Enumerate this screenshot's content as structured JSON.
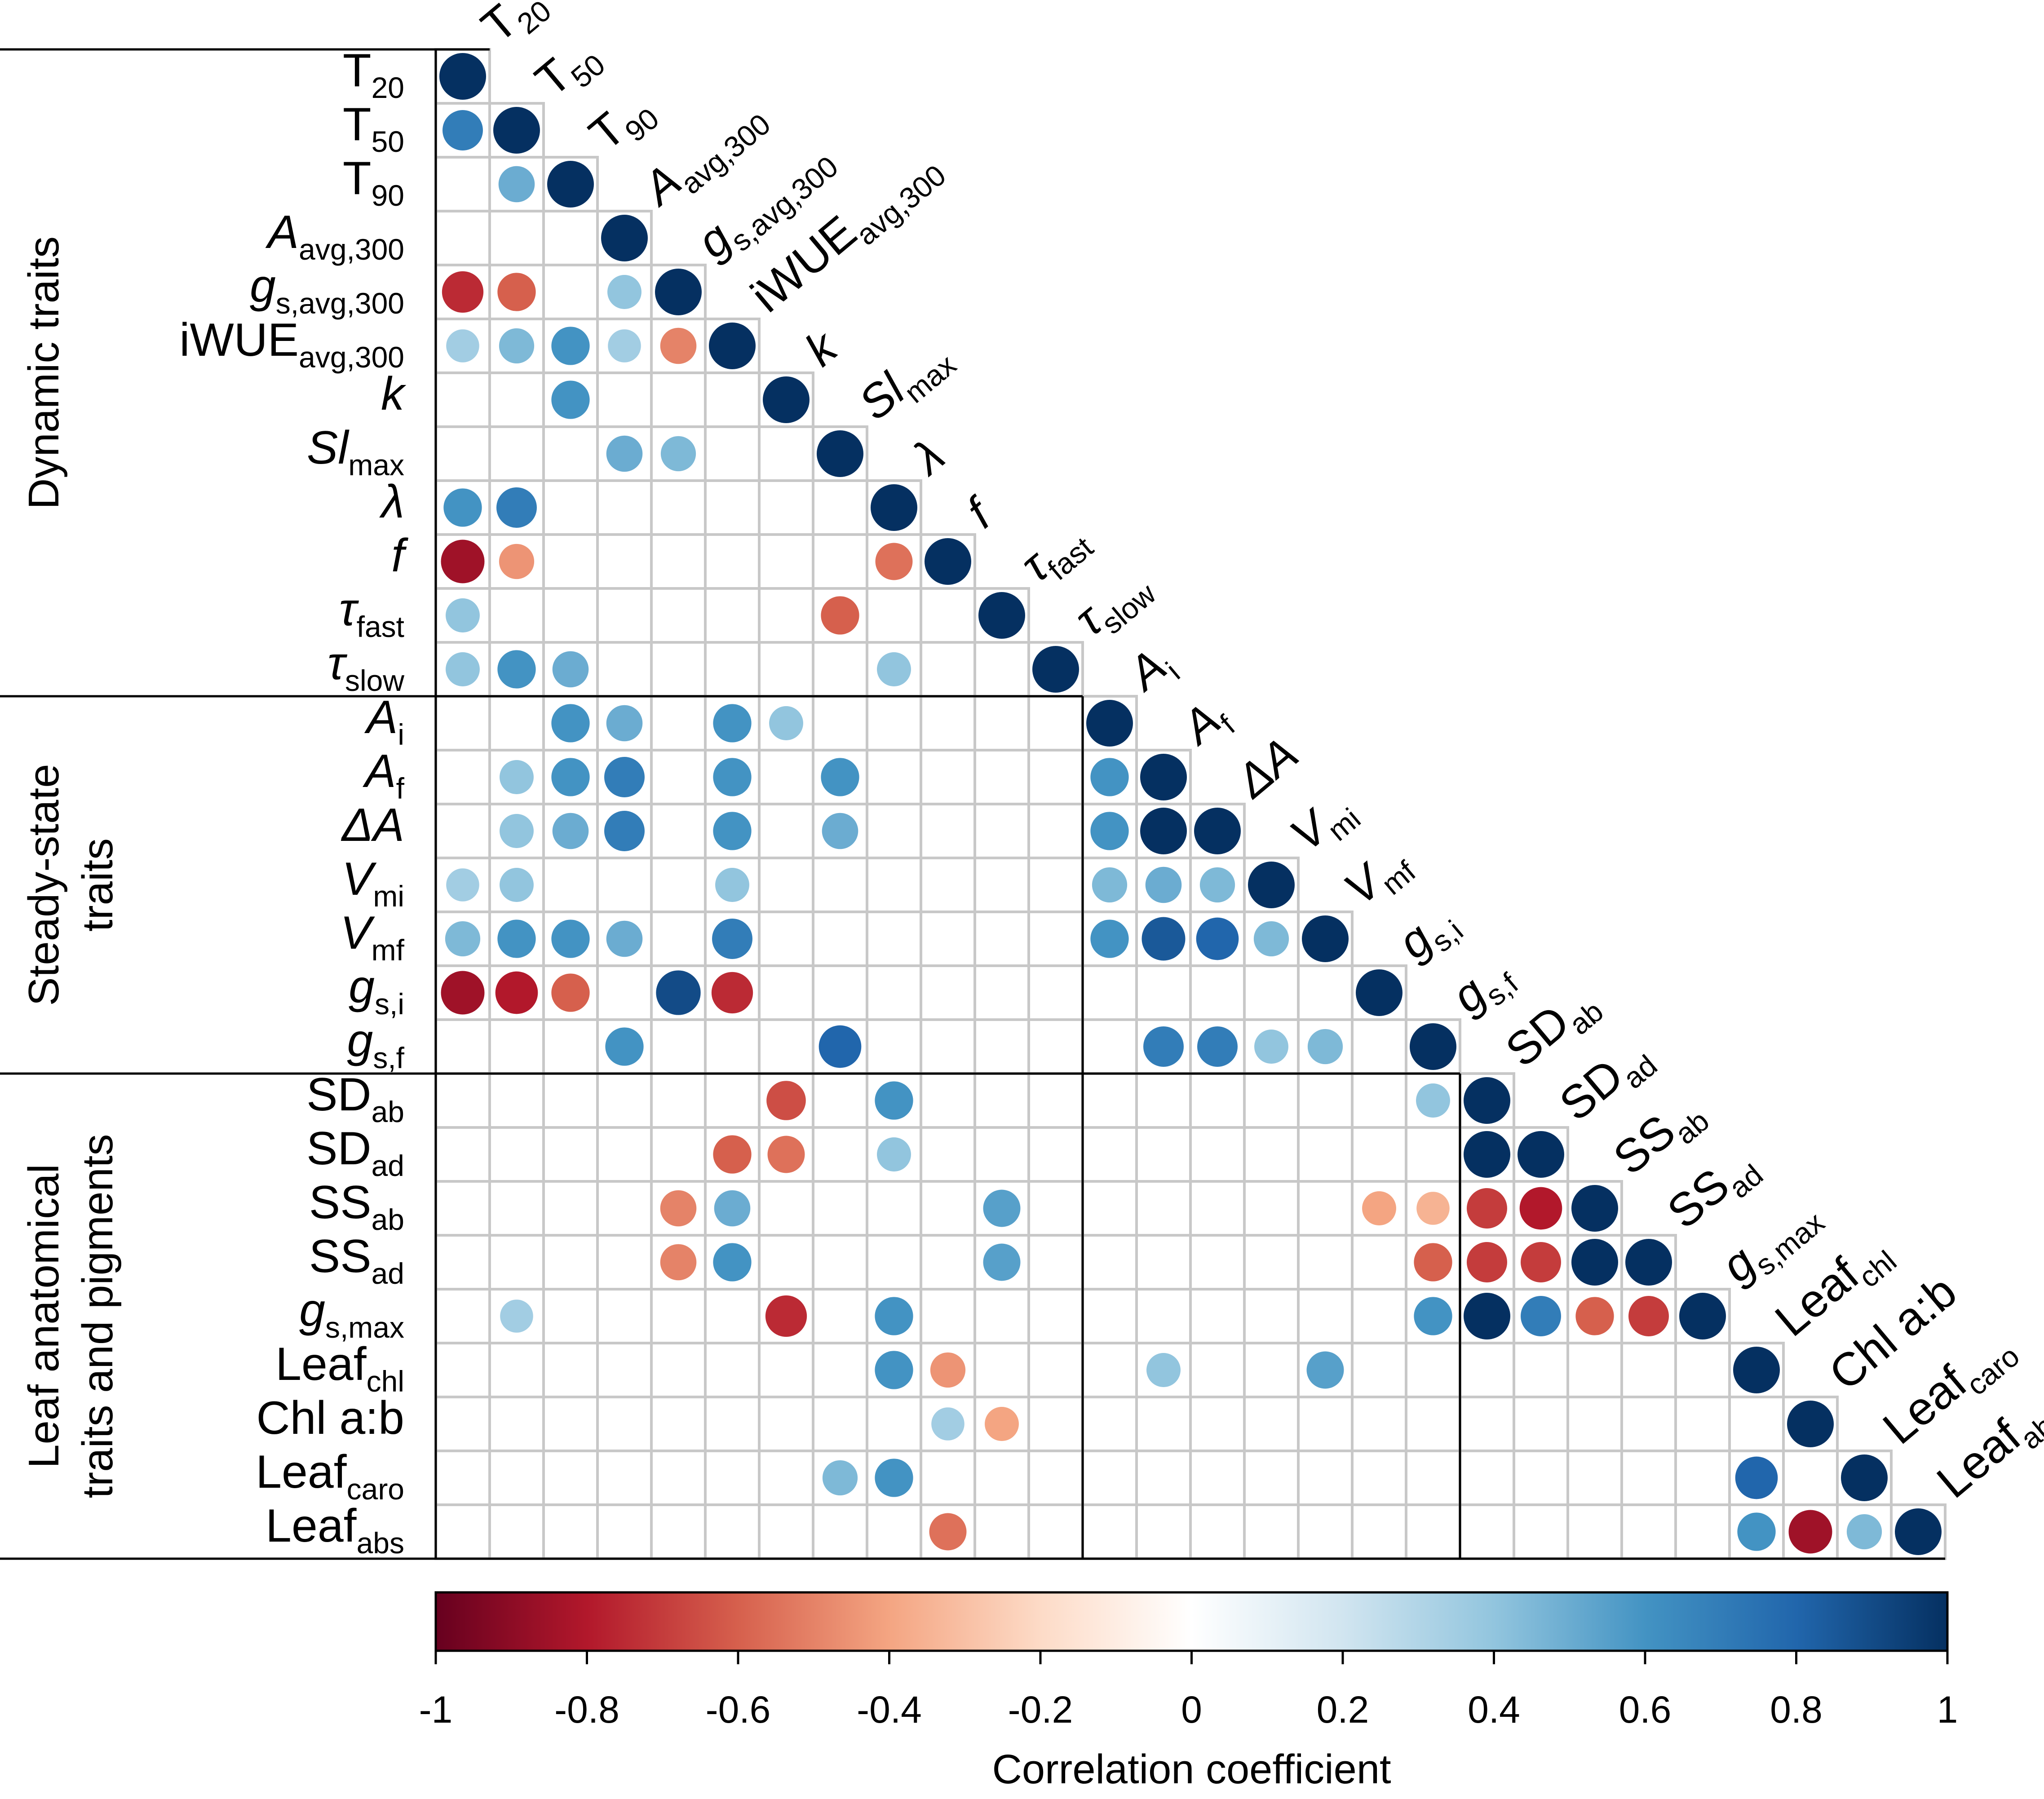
{
  "chart_data": {
    "type": "heatmap",
    "title": "",
    "style": "lower-triangle correlation matrix (circles)",
    "colorbar": {
      "title": "Correlation coefficient",
      "range": [
        -1,
        1
      ],
      "ticks": [
        "-1",
        "-0.8",
        "-0.6",
        "-0.4",
        "-0.2",
        "0",
        "0.2",
        "0.4",
        "0.6",
        "0.8",
        "1"
      ],
      "palette": [
        "#67001f",
        "#b2182b",
        "#d6604d",
        "#f4a582",
        "#fddbc7",
        "#ffffff",
        "#d1e5f0",
        "#92c5de",
        "#4393c3",
        "#2166ac",
        "#053061"
      ]
    },
    "groups": [
      {
        "name": "Dynamic traits",
        "lines": [
          "Dynamic traits"
        ],
        "start": 0,
        "end": 11
      },
      {
        "name": "Steady-state traits",
        "lines": [
          "Steady-state",
          "traits"
        ],
        "start": 12,
        "end": 18
      },
      {
        "name": "Leaf anatomical traits and pigments",
        "lines": [
          "Leaf anatomical",
          "traits and pigments"
        ],
        "start": 19,
        "end": 27
      }
    ],
    "variables": [
      {
        "base": "T",
        "sub": "20",
        "italic": false
      },
      {
        "base": "T",
        "sub": "50",
        "italic": false
      },
      {
        "base": "T",
        "sub": "90",
        "italic": false
      },
      {
        "base": "A",
        "sub": "avg,300",
        "italic": true
      },
      {
        "base": "g",
        "sub": "s,avg,300",
        "italic": true
      },
      {
        "base": "iWUE",
        "sub": "avg,300",
        "italic": false
      },
      {
        "base": "k",
        "sub": "",
        "italic": true
      },
      {
        "base": "Sl",
        "sub": "max",
        "italic": true
      },
      {
        "base": "λ",
        "sub": "",
        "italic": true
      },
      {
        "base": "f",
        "sub": "",
        "italic": true
      },
      {
        "base": "τ",
        "sub": "fast",
        "italic": true
      },
      {
        "base": "τ",
        "sub": "slow",
        "italic": true
      },
      {
        "base": "A",
        "sub": "i",
        "italic": true
      },
      {
        "base": "A",
        "sub": "f",
        "italic": true
      },
      {
        "base": "ΔA",
        "sub": "",
        "italic": true
      },
      {
        "base": "V",
        "sub": "mi",
        "italic": true
      },
      {
        "base": "V",
        "sub": "mf",
        "italic": true
      },
      {
        "base": "g",
        "sub": "s,i",
        "italic": true
      },
      {
        "base": "g",
        "sub": "s,f",
        "italic": true
      },
      {
        "base": "SD",
        "sub": "ab",
        "italic": false
      },
      {
        "base": "SD",
        "sub": "ad",
        "italic": false
      },
      {
        "base": "SS",
        "sub": "ab",
        "italic": false
      },
      {
        "base": "SS",
        "sub": "ad",
        "italic": false
      },
      {
        "base": "g",
        "sub": "s,max",
        "italic": true
      },
      {
        "base": "Leaf",
        "sub": "chl",
        "italic": false
      },
      {
        "base": "Chl a:b",
        "sub": "",
        "italic": false
      },
      {
        "base": "Leaf",
        "sub": "caro",
        "italic": false
      },
      {
        "base": "Leaf",
        "sub": "abs",
        "italic": false
      }
    ],
    "cells": [
      [
        0,
        0,
        1.0
      ],
      [
        1,
        0,
        0.7
      ],
      [
        1,
        1,
        1.0
      ],
      [
        2,
        1,
        0.5
      ],
      [
        2,
        2,
        1.0
      ],
      [
        3,
        3,
        1.0
      ],
      [
        4,
        0,
        -0.75
      ],
      [
        4,
        1,
        -0.6
      ],
      [
        4,
        3,
        0.4
      ],
      [
        4,
        4,
        1.0
      ],
      [
        5,
        0,
        0.35
      ],
      [
        5,
        1,
        0.45
      ],
      [
        5,
        2,
        0.6
      ],
      [
        5,
        3,
        0.35
      ],
      [
        5,
        4,
        -0.5
      ],
      [
        5,
        5,
        1.0
      ],
      [
        6,
        2,
        0.6
      ],
      [
        6,
        6,
        1.0
      ],
      [
        7,
        3,
        0.5
      ],
      [
        7,
        4,
        0.45
      ],
      [
        7,
        7,
        1.0
      ],
      [
        8,
        0,
        0.6
      ],
      [
        8,
        1,
        0.7
      ],
      [
        8,
        8,
        1.0
      ],
      [
        9,
        0,
        -0.85
      ],
      [
        9,
        1,
        -0.45
      ],
      [
        9,
        8,
        -0.55
      ],
      [
        9,
        9,
        1.0
      ],
      [
        10,
        0,
        0.4
      ],
      [
        10,
        7,
        -0.6
      ],
      [
        10,
        10,
        1.0
      ],
      [
        11,
        0,
        0.4
      ],
      [
        11,
        1,
        0.6
      ],
      [
        11,
        2,
        0.5
      ],
      [
        11,
        8,
        0.4
      ],
      [
        11,
        11,
        1.0
      ],
      [
        12,
        2,
        0.6
      ],
      [
        12,
        3,
        0.5
      ],
      [
        12,
        5,
        0.6
      ],
      [
        12,
        6,
        0.4
      ],
      [
        12,
        12,
        1.0
      ],
      [
        13,
        1,
        0.4
      ],
      [
        13,
        2,
        0.6
      ],
      [
        13,
        3,
        0.7
      ],
      [
        13,
        5,
        0.6
      ],
      [
        13,
        7,
        0.6
      ],
      [
        13,
        12,
        0.6
      ],
      [
        13,
        13,
        1.0
      ],
      [
        14,
        1,
        0.4
      ],
      [
        14,
        2,
        0.5
      ],
      [
        14,
        3,
        0.7
      ],
      [
        14,
        5,
        0.6
      ],
      [
        14,
        7,
        0.5
      ],
      [
        14,
        12,
        0.6
      ],
      [
        14,
        13,
        1.0
      ],
      [
        14,
        14,
        1.0
      ],
      [
        15,
        0,
        0.35
      ],
      [
        15,
        1,
        0.4
      ],
      [
        15,
        5,
        0.4
      ],
      [
        15,
        12,
        0.45
      ],
      [
        15,
        13,
        0.5
      ],
      [
        15,
        14,
        0.45
      ],
      [
        15,
        15,
        1.0
      ],
      [
        16,
        0,
        0.45
      ],
      [
        16,
        1,
        0.6
      ],
      [
        16,
        2,
        0.6
      ],
      [
        16,
        3,
        0.5
      ],
      [
        16,
        5,
        0.7
      ],
      [
        16,
        12,
        0.6
      ],
      [
        16,
        13,
        0.85
      ],
      [
        16,
        14,
        0.8
      ],
      [
        16,
        15,
        0.45
      ],
      [
        16,
        16,
        1.0
      ],
      [
        17,
        0,
        -0.85
      ],
      [
        17,
        1,
        -0.8
      ],
      [
        17,
        2,
        -0.6
      ],
      [
        17,
        4,
        0.9
      ],
      [
        17,
        5,
        -0.75
      ],
      [
        17,
        17,
        1.0
      ],
      [
        18,
        3,
        0.6
      ],
      [
        18,
        7,
        0.8
      ],
      [
        18,
        13,
        0.7
      ],
      [
        18,
        14,
        0.7
      ],
      [
        18,
        15,
        0.4
      ],
      [
        18,
        16,
        0.45
      ],
      [
        18,
        18,
        1.0
      ],
      [
        19,
        6,
        -0.65
      ],
      [
        19,
        8,
        0.6
      ],
      [
        19,
        18,
        0.4
      ],
      [
        19,
        19,
        1.0
      ],
      [
        20,
        5,
        -0.6
      ],
      [
        20,
        6,
        -0.55
      ],
      [
        20,
        8,
        0.4
      ],
      [
        20,
        19,
        1.0
      ],
      [
        20,
        20,
        1.0
      ],
      [
        21,
        4,
        -0.5
      ],
      [
        21,
        5,
        0.5
      ],
      [
        21,
        10,
        0.55
      ],
      [
        21,
        17,
        -0.4
      ],
      [
        21,
        18,
        -0.35
      ],
      [
        21,
        19,
        -0.7
      ],
      [
        21,
        20,
        -0.8
      ],
      [
        21,
        21,
        1.0
      ],
      [
        22,
        4,
        -0.5
      ],
      [
        22,
        5,
        0.6
      ],
      [
        22,
        10,
        0.55
      ],
      [
        22,
        18,
        -0.6
      ],
      [
        22,
        19,
        -0.7
      ],
      [
        22,
        20,
        -0.7
      ],
      [
        22,
        21,
        1.0
      ],
      [
        22,
        22,
        1.0
      ],
      [
        23,
        1,
        0.35
      ],
      [
        23,
        6,
        -0.75
      ],
      [
        23,
        8,
        0.6
      ],
      [
        23,
        18,
        0.6
      ],
      [
        23,
        19,
        1.0
      ],
      [
        23,
        20,
        0.7
      ],
      [
        23,
        21,
        -0.6
      ],
      [
        23,
        22,
        -0.7
      ],
      [
        23,
        23,
        1.0
      ],
      [
        24,
        8,
        0.6
      ],
      [
        24,
        9,
        -0.45
      ],
      [
        24,
        13,
        0.4
      ],
      [
        24,
        16,
        0.55
      ],
      [
        24,
        24,
        1.0
      ],
      [
        25,
        9,
        0.35
      ],
      [
        25,
        10,
        -0.4
      ],
      [
        25,
        25,
        1.0
      ],
      [
        26,
        7,
        0.45
      ],
      [
        26,
        8,
        0.6
      ],
      [
        26,
        24,
        0.8
      ],
      [
        26,
        26,
        1.0
      ],
      [
        27,
        9,
        -0.55
      ],
      [
        27,
        24,
        0.6
      ],
      [
        27,
        25,
        -0.85
      ],
      [
        27,
        26,
        0.45
      ],
      [
        27,
        27,
        1.0
      ]
    ]
  }
}
